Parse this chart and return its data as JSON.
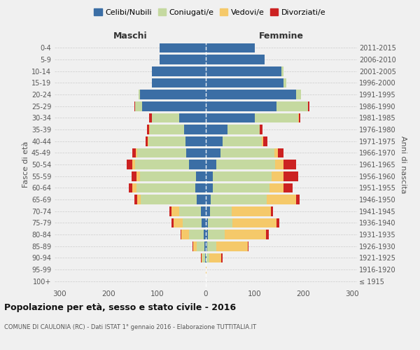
{
  "age_groups": [
    "100+",
    "95-99",
    "90-94",
    "85-89",
    "80-84",
    "75-79",
    "70-74",
    "65-69",
    "60-64",
    "55-59",
    "50-54",
    "45-49",
    "40-44",
    "35-39",
    "30-34",
    "25-29",
    "20-24",
    "15-19",
    "10-14",
    "5-9",
    "0-4"
  ],
  "birth_years": [
    "≤ 1915",
    "1916-1920",
    "1921-1925",
    "1926-1930",
    "1931-1935",
    "1936-1940",
    "1941-1945",
    "1946-1950",
    "1951-1955",
    "1956-1960",
    "1961-1965",
    "1966-1970",
    "1971-1975",
    "1976-1980",
    "1981-1985",
    "1986-1990",
    "1991-1995",
    "1996-2000",
    "2001-2005",
    "2006-2010",
    "2011-2015"
  ],
  "maschi": {
    "celibi": [
      0,
      0,
      2,
      3,
      5,
      8,
      10,
      18,
      22,
      20,
      35,
      40,
      42,
      45,
      55,
      130,
      135,
      110,
      110,
      95,
      95
    ],
    "coniugati": [
      0,
      0,
      5,
      15,
      30,
      40,
      45,
      115,
      120,
      115,
      110,
      100,
      75,
      70,
      55,
      15,
      3,
      0,
      0,
      0,
      0
    ],
    "vedovi": [
      0,
      0,
      2,
      8,
      15,
      18,
      15,
      8,
      8,
      7,
      5,
      3,
      2,
      1,
      1,
      0,
      0,
      0,
      0,
      0,
      0
    ],
    "divorziati": [
      0,
      0,
      1,
      1,
      2,
      5,
      5,
      5,
      8,
      10,
      12,
      8,
      5,
      5,
      5,
      2,
      0,
      0,
      0,
      0,
      0
    ]
  },
  "femmine": {
    "nubili": [
      0,
      0,
      2,
      3,
      4,
      5,
      8,
      10,
      15,
      15,
      22,
      30,
      35,
      45,
      100,
      145,
      185,
      160,
      155,
      120,
      100
    ],
    "coniugate": [
      0,
      0,
      5,
      18,
      35,
      50,
      45,
      115,
      115,
      120,
      120,
      110,
      80,
      65,
      90,
      65,
      10,
      5,
      5,
      0,
      0
    ],
    "vedove": [
      0,
      2,
      25,
      65,
      85,
      90,
      80,
      60,
      30,
      25,
      18,
      8,
      3,
      1,
      1,
      0,
      0,
      0,
      0,
      0,
      0
    ],
    "divorziate": [
      0,
      0,
      2,
      2,
      5,
      5,
      5,
      8,
      18,
      30,
      25,
      12,
      8,
      5,
      3,
      2,
      0,
      0,
      0,
      0,
      0
    ]
  },
  "colors": {
    "celibi": "#3b6ea5",
    "coniugati": "#c5d9a0",
    "vedovi": "#f5c96a",
    "divorziati": "#cc2222"
  },
  "title": "Popolazione per età, sesso e stato civile - 2016",
  "subtitle": "COMUNE DI CAULONIA (RC) - Dati ISTAT 1° gennaio 2016 - Elaborazione TUTTITALIA.IT",
  "xlabel_left": "Maschi",
  "xlabel_right": "Femmine",
  "ylabel_left": "Fasce di età",
  "ylabel_right": "Anni di nascita",
  "xlim": 310,
  "background_color": "#f0f0f0"
}
